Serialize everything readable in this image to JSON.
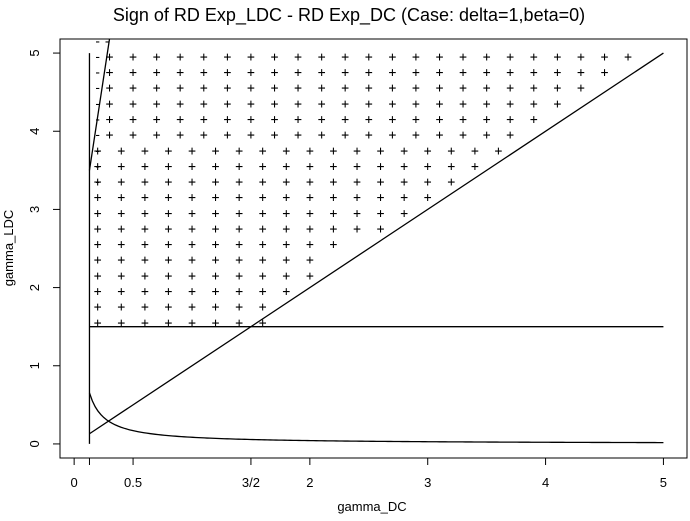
{
  "chart_data": {
    "type": "scatter",
    "title": "Sign of RD Exp_LDC - RD Exp_DC (Case: delta=1,beta=0)",
    "xlabel": "gamma_DC",
    "ylabel": "gamma_LDC",
    "xlim": [
      -0.12,
      5.2
    ],
    "ylim": [
      -0.18,
      5.18
    ],
    "x_ticks": [
      {
        "value": 0,
        "label": "0"
      },
      {
        "value": 0.5,
        "label": "0.5"
      },
      {
        "value": 1.5,
        "label": "3/2"
      },
      {
        "value": 2,
        "label": "2"
      },
      {
        "value": 3,
        "label": "3"
      },
      {
        "value": 4,
        "label": "4"
      },
      {
        "value": 5,
        "label": "5"
      }
    ],
    "y_ticks": [
      {
        "value": 0,
        "label": "0"
      },
      {
        "value": 1,
        "label": "1"
      },
      {
        "value": 2,
        "label": "2"
      },
      {
        "value": 3,
        "label": "3"
      },
      {
        "value": 4,
        "label": "4"
      },
      {
        "value": 5,
        "label": "5"
      }
    ],
    "extra_x_ticks": [
      0.13
    ],
    "grid": false,
    "legend": "none",
    "sign_grid": {
      "x_start": 0.2,
      "x_step": 0.2,
      "y_start": 1.55,
      "y_step": 0.2,
      "plus_rows": [
        {
          "y": 1.55,
          "x_from": 0.2,
          "x_to": 1.6
        },
        {
          "y": 1.75,
          "x_from": 0.2,
          "x_to": 1.6
        },
        {
          "y": 1.95,
          "x_from": 0.2,
          "x_to": 1.8
        },
        {
          "y": 2.15,
          "x_from": 0.2,
          "x_to": 2.0
        },
        {
          "y": 2.35,
          "x_from": 0.2,
          "x_to": 2.0
        },
        {
          "y": 2.55,
          "x_from": 0.2,
          "x_to": 2.2
        },
        {
          "y": 2.75,
          "x_from": 0.2,
          "x_to": 2.6
        },
        {
          "y": 2.95,
          "x_from": 0.2,
          "x_to": 2.8
        },
        {
          "y": 3.15,
          "x_from": 0.2,
          "x_to": 3.0
        },
        {
          "y": 3.35,
          "x_from": 0.2,
          "x_to": 3.2
        },
        {
          "y": 3.55,
          "x_from": 0.2,
          "x_to": 3.4
        },
        {
          "y": 3.75,
          "x_from": 0.2,
          "x_to": 3.6
        },
        {
          "y": 3.95,
          "x_from": 0.3,
          "x_to": 3.8
        },
        {
          "y": 4.15,
          "x_from": 0.3,
          "x_to": 4.0
        },
        {
          "y": 4.35,
          "x_from": 0.3,
          "x_to": 4.2
        },
        {
          "y": 4.55,
          "x_from": 0.3,
          "x_to": 4.4
        },
        {
          "y": 4.75,
          "x_from": 0.3,
          "x_to": 4.6
        },
        {
          "y": 4.95,
          "x_from": 0.3,
          "x_to": 4.8
        }
      ],
      "minus_points": [
        {
          "x": 0.2,
          "y": 3.35
        },
        {
          "x": 0.2,
          "y": 3.55
        },
        {
          "x": 0.2,
          "y": 3.75
        },
        {
          "x": 0.2,
          "y": 3.95
        },
        {
          "x": 0.2,
          "y": 4.15
        },
        {
          "x": 0.2,
          "y": 4.35
        },
        {
          "x": 0.2,
          "y": 4.55
        },
        {
          "x": 0.2,
          "y": 4.75
        },
        {
          "x": 0.2,
          "y": 4.95
        },
        {
          "x": 0.2,
          "y": 5.15
        },
        {
          "x": 0.28,
          "y": 5.15
        }
      ]
    },
    "curves": [
      {
        "kind": "vline",
        "x": 0.13,
        "y_from": 0,
        "y_to": 5
      },
      {
        "kind": "segment",
        "x1": 0.13,
        "y1": 3.5,
        "x2": 0.3,
        "y2": 5.18
      },
      {
        "kind": "hline",
        "y": 1.5,
        "x_from": 0.13,
        "x_to": 5
      },
      {
        "kind": "segment",
        "x1": 0.13,
        "y1": 0.13,
        "x2": 5,
        "y2": 5
      },
      {
        "kind": "hyperbola",
        "k": 0.085,
        "x_from": 0.13,
        "x_to": 5
      }
    ]
  }
}
